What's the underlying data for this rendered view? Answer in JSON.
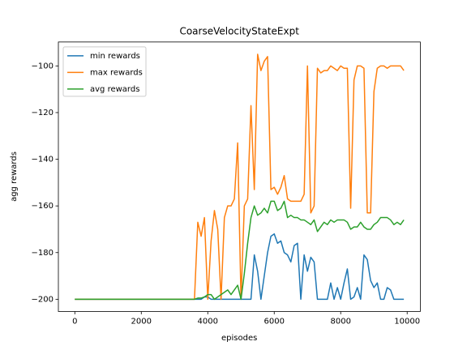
{
  "chart_data": {
    "type": "line",
    "title": "CoarseVelocityStateExpt",
    "xlabel": "episodes",
    "ylabel": "agg rewards",
    "x": [
      0,
      100,
      200,
      300,
      400,
      500,
      600,
      700,
      800,
      900,
      1000,
      1100,
      1200,
      1300,
      1400,
      1500,
      1600,
      1700,
      1800,
      1900,
      2000,
      2100,
      2200,
      2300,
      2400,
      2500,
      2600,
      2700,
      2800,
      2900,
      3000,
      3100,
      3200,
      3300,
      3400,
      3500,
      3600,
      3700,
      3800,
      3900,
      4000,
      4100,
      4200,
      4300,
      4400,
      4500,
      4600,
      4700,
      4800,
      4900,
      5000,
      5100,
      5200,
      5300,
      5400,
      5500,
      5600,
      5700,
      5800,
      5900,
      6000,
      6100,
      6200,
      6300,
      6400,
      6500,
      6600,
      6700,
      6800,
      6900,
      7000,
      7100,
      7200,
      7300,
      7400,
      7500,
      7600,
      7700,
      7800,
      7900,
      8000,
      8100,
      8200,
      8300,
      8400,
      8500,
      8600,
      8700,
      8800,
      8900,
      9000,
      9100,
      9200,
      9300,
      9400,
      9500,
      9600,
      9700,
      9800,
      9900
    ],
    "series": [
      {
        "name": "min rewards",
        "color": "#1f77b4",
        "values": [
          -200,
          -200,
          -200,
          -200,
          -200,
          -200,
          -200,
          -200,
          -200,
          -200,
          -200,
          -200,
          -200,
          -200,
          -200,
          -200,
          -200,
          -200,
          -200,
          -200,
          -200,
          -200,
          -200,
          -200,
          -200,
          -200,
          -200,
          -200,
          -200,
          -200,
          -200,
          -200,
          -200,
          -200,
          -200,
          -200,
          -200,
          -200,
          -200,
          -199,
          -199,
          -200,
          -200,
          -200,
          -200,
          -200,
          -200,
          -200,
          -200,
          -200,
          -200,
          -200,
          -200,
          -200,
          -181,
          -188,
          -200,
          -190,
          -180,
          -173,
          -172,
          -176,
          -175,
          -180,
          -181,
          -184,
          -177,
          -176,
          -200,
          -181,
          -188,
          -182,
          -184,
          -200,
          -200,
          -200,
          -200,
          -193,
          -200,
          -195,
          -200,
          -193,
          -187,
          -200,
          -199,
          -195,
          -200,
          -181,
          -183,
          -192,
          -195,
          -193,
          -200,
          -200,
          -195,
          -196,
          -200,
          -200,
          -200,
          -200
        ]
      },
      {
        "name": "max rewards",
        "color": "#ff7f0e",
        "values": [
          -200,
          -200,
          -200,
          -200,
          -200,
          -200,
          -200,
          -200,
          -200,
          -200,
          -200,
          -200,
          -200,
          -200,
          -200,
          -200,
          -200,
          -200,
          -200,
          -200,
          -200,
          -200,
          -200,
          -200,
          -200,
          -200,
          -200,
          -200,
          -200,
          -200,
          -200,
          -200,
          -200,
          -200,
          -200,
          -200,
          -200,
          -167,
          -173,
          -165,
          -200,
          -175,
          -162,
          -170,
          -200,
          -165,
          -160,
          -160,
          -157,
          -133,
          -200,
          -160,
          -157,
          -117,
          -153,
          -95,
          -102,
          -98,
          -96,
          -153,
          -152,
          -155,
          -152,
          -147,
          -157,
          -158,
          -158,
          -158,
          -158,
          -155,
          -100,
          -163,
          -160,
          -101,
          -103,
          -102,
          -102,
          -100,
          -101,
          -102,
          -100,
          -101,
          -101,
          -161,
          -106,
          -100,
          -100,
          -101,
          -163,
          -163,
          -111,
          -101,
          -100,
          -100,
          -101,
          -100,
          -100,
          -100,
          -100,
          -102
        ]
      },
      {
        "name": "avg rewards",
        "color": "#2ca02c",
        "values": [
          -200,
          -200,
          -200,
          -200,
          -200,
          -200,
          -200,
          -200,
          -200,
          -200,
          -200,
          -200,
          -200,
          -200,
          -200,
          -200,
          -200,
          -200,
          -200,
          -200,
          -200,
          -200,
          -200,
          -200,
          -200,
          -200,
          -200,
          -200,
          -200,
          -200,
          -200,
          -200,
          -200,
          -200,
          -200,
          -200,
          -200,
          -199.5,
          -199.5,
          -199,
          -198,
          -198,
          -200,
          -199,
          -198,
          -197,
          -196,
          -198,
          -196,
          -194,
          -200,
          -189,
          -176,
          -165,
          -160,
          -164,
          -163,
          -161,
          -163,
          -158,
          -158,
          -162,
          -161,
          -158,
          -165,
          -164,
          -165,
          -165,
          -166,
          -166,
          -167,
          -168,
          -166,
          -171,
          -169,
          -167,
          -168,
          -166,
          -167,
          -166,
          -166,
          -166,
          -167,
          -170,
          -169,
          -169,
          -167,
          -169,
          -170,
          -170,
          -168,
          -167,
          -165,
          -165,
          -165,
          -166,
          -168,
          -167,
          -168,
          -166
        ]
      }
    ],
    "xlim": [
      -495,
      10395
    ],
    "ylim": [
      -205.25,
      -89.75
    ],
    "xticks": [
      0,
      2000,
      4000,
      6000,
      8000,
      10000
    ],
    "yticks": [
      {
        "value": -200,
        "label": "−200"
      },
      {
        "value": -180,
        "label": "−180"
      },
      {
        "value": -160,
        "label": "−160"
      },
      {
        "value": -140,
        "label": "−140"
      },
      {
        "value": -120,
        "label": "−120"
      },
      {
        "value": -100,
        "label": "−100"
      }
    ],
    "legend": "upper left"
  }
}
